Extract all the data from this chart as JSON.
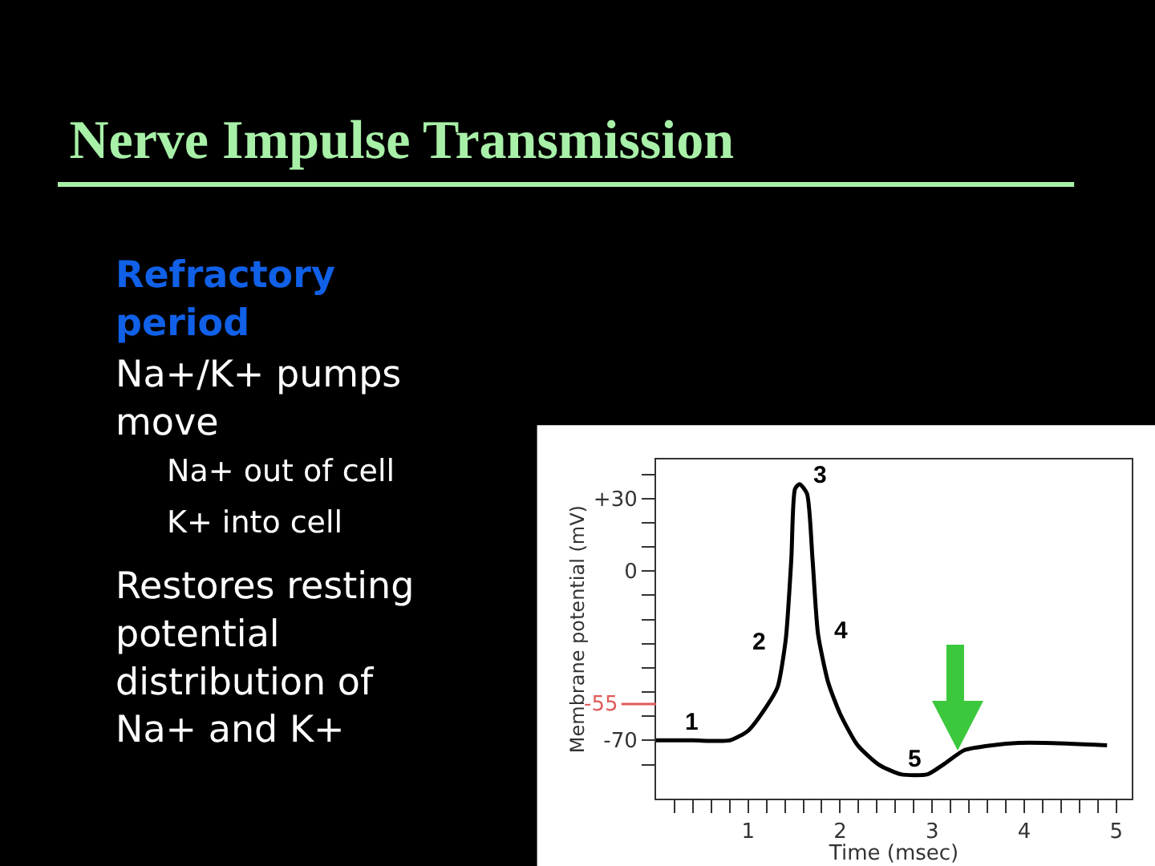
{
  "chart_data": {
    "type": "line",
    "title": "Nerve Impulse Transmission",
    "xlabel": "Time (msec)",
    "ylabel": "Membrane potential (mV)",
    "x": [
      0,
      0.4,
      0.8,
      1.0,
      1.2,
      1.32,
      1.41,
      1.47,
      1.51,
      1.56,
      1.64,
      1.7,
      1.76,
      1.87,
      2.0,
      2.19,
      2.42,
      2.66,
      2.95,
      3.12,
      3.35,
      3.65,
      3.94,
      4.23,
      4.9
    ],
    "series": [
      {
        "color": "#000000",
        "values": [
          -70,
          -70,
          -70,
          -66,
          -56,
          -48,
          -28,
          5,
          34,
          36,
          32,
          5,
          -26,
          -46,
          -59,
          -72,
          -80,
          -84,
          -84,
          -80,
          -74,
          -72,
          -71,
          -71,
          -72
        ]
      }
    ],
    "xlim": [
      0,
      5.17
    ],
    "ylim": [
      -94,
      46
    ],
    "xticks": [
      {
        "value": 0.2,
        "label": null
      },
      {
        "value": 0.4,
        "label": null
      },
      {
        "value": 0.6,
        "label": null
      },
      {
        "value": 0.8,
        "label": null
      },
      1,
      {
        "value": 1.2,
        "label": null
      },
      {
        "value": 1.4,
        "label": null
      },
      {
        "value": 1.6,
        "label": null
      },
      {
        "value": 1.8,
        "label": null
      },
      2,
      {
        "value": 2.2,
        "label": null
      },
      {
        "value": 2.4,
        "label": null
      },
      {
        "value": 2.6,
        "label": null
      },
      {
        "value": 2.8,
        "label": null
      },
      3,
      {
        "value": 3.2,
        "label": null
      },
      {
        "value": 3.4,
        "label": null
      },
      {
        "value": 3.6,
        "label": null
      },
      {
        "value": 3.8,
        "label": null
      },
      4,
      {
        "value": 4.2,
        "label": null
      },
      {
        "value": 4.4,
        "label": null
      },
      {
        "value": 4.6,
        "label": null
      },
      {
        "value": 4.8,
        "label": null
      },
      5
    ],
    "yticks": [
      {
        "value": 40,
        "label": null
      },
      {
        "value": 30,
        "label": "+30"
      },
      {
        "value": 20,
        "label": null
      },
      {
        "value": 10,
        "label": null
      },
      0,
      {
        "value": -10,
        "label": null
      },
      {
        "value": -20,
        "label": null
      },
      {
        "value": -30,
        "label": null
      },
      {
        "value": -40,
        "label": null
      },
      {
        "value": -50,
        "label": null
      },
      {
        "value": -60,
        "label": null
      },
      -70,
      {
        "value": -80,
        "label": null
      }
    ],
    "ref_lines": [
      {
        "axis": "y",
        "value": -55,
        "label": "-55",
        "color": "#e05a5a"
      }
    ],
    "marker": "none",
    "line_style": "solid",
    "annotations": [
      "1",
      "2",
      "3",
      "4",
      "5",
      "Refractory\nperiod",
      "Na+/K+ pumps\nmove",
      "Na+ out of cell",
      "K+ into cell",
      "Restores resting\npotential\ndistribution of\nNa+ and K+"
    ]
  }
}
